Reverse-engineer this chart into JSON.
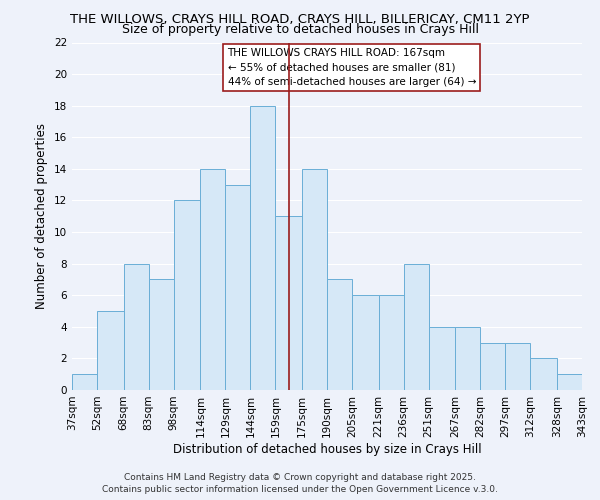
{
  "title_line1": "THE WILLOWS, CRAYS HILL ROAD, CRAYS HILL, BILLERICAY, CM11 2YP",
  "title_line2": "Size of property relative to detached houses in Crays Hill",
  "xlabel": "Distribution of detached houses by size in Crays Hill",
  "ylabel": "Number of detached properties",
  "bin_edges": [
    37,
    52,
    68,
    83,
    98,
    114,
    129,
    144,
    159,
    175,
    190,
    205,
    221,
    236,
    251,
    267,
    282,
    297,
    312,
    328,
    343
  ],
  "counts": [
    1,
    5,
    8,
    7,
    12,
    14,
    13,
    18,
    11,
    14,
    7,
    6,
    6,
    8,
    4,
    4,
    3,
    3,
    2,
    1
  ],
  "bar_color": "#d6e8f7",
  "bar_edge_color": "#6aaed6",
  "vline_x": 167,
  "vline_color": "#9b1c1c",
  "annotation_text": "THE WILLOWS CRAYS HILL ROAD: 167sqm\n← 55% of detached houses are smaller (81)\n44% of semi-detached houses are larger (64) →",
  "annotation_box_color": "white",
  "annotation_border_color": "#9b1c1c",
  "ylim": [
    0,
    22
  ],
  "yticks": [
    0,
    2,
    4,
    6,
    8,
    10,
    12,
    14,
    16,
    18,
    20,
    22
  ],
  "tick_labels": [
    "37sqm",
    "52sqm",
    "68sqm",
    "83sqm",
    "98sqm",
    "114sqm",
    "129sqm",
    "144sqm",
    "159sqm",
    "175sqm",
    "190sqm",
    "205sqm",
    "221sqm",
    "236sqm",
    "251sqm",
    "267sqm",
    "282sqm",
    "297sqm",
    "312sqm",
    "328sqm",
    "343sqm"
  ],
  "footer_text": "Contains HM Land Registry data © Crown copyright and database right 2025.\nContains public sector information licensed under the Open Government Licence v.3.0.",
  "bg_color": "#eef2fa",
  "grid_color": "#ffffff",
  "title_fontsize": 9.5,
  "subtitle_fontsize": 9,
  "axis_label_fontsize": 8.5,
  "tick_fontsize": 7.5,
  "annotation_fontsize": 7.5,
  "footer_fontsize": 6.5
}
